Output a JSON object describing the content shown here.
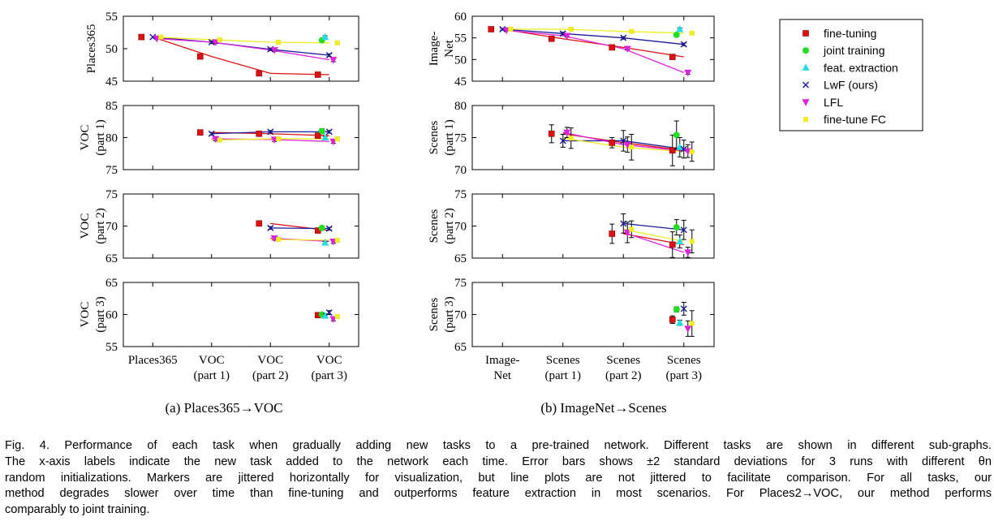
{
  "legend": [
    {
      "key": "ft",
      "label": "fine-tuning",
      "color": "#dd1111",
      "marker": "square"
    },
    {
      "key": "jt",
      "label": "joint training",
      "color": "#22dd22",
      "marker": "circle"
    },
    {
      "key": "fe",
      "label": "feat. extraction",
      "color": "#22dddd",
      "marker": "triangle-up"
    },
    {
      "key": "lwf",
      "label": "LwF (ours)",
      "color": "#1a1a9a",
      "marker": "x"
    },
    {
      "key": "lfl",
      "label": "LFL",
      "color": "#dd22dd",
      "marker": "triangle-down"
    },
    {
      "key": "ftfc",
      "label": "fine-tune FC",
      "color": "#eeee22",
      "marker": "square-small"
    }
  ],
  "subcaptions": [
    "(a) Places365→VOC",
    "(b) ImageNet→Scenes"
  ],
  "caption": [
    "Fig. 4. Performance of each task when gradually adding new tasks to a pre-trained network. Different tasks are shown in different sub-graphs.",
    "The x-axis labels indicate the new task added to the network each time. Error bars shows ±2 standard deviations for 3 runs with different θn",
    "random initializations. Markers are jittered horizontally for visualization, but line plots are not jittered to facilitate comparison. For all tasks, our",
    "method degrades slower over time than fine-tuning and outperforms feature extraction in most scenarios. For Places2→VOC, our method performs",
    "comparably to joint training."
  ],
  "chart_data": [
    {
      "type": "line",
      "panel": "a",
      "ylabel": [
        "Places365"
      ],
      "ylim": [
        45,
        55
      ],
      "yticks": [
        45,
        50,
        55
      ],
      "categories": [
        [
          "Places365"
        ],
        [
          "VOC",
          "(part 1)"
        ],
        [
          "VOC",
          "(part 2)"
        ],
        [
          "VOC",
          "(part 3)"
        ]
      ],
      "show_xticklabels": false,
      "series": [
        {
          "key": "ft",
          "values": [
            51.8,
            48.8,
            46.2,
            46.0
          ],
          "err": [
            0,
            0.3,
            0.3,
            0.3
          ]
        },
        {
          "key": "jt",
          "values": [
            null,
            null,
            null,
            51.3
          ],
          "err": [
            0,
            0,
            0,
            0.2
          ]
        },
        {
          "key": "fe",
          "values": [
            null,
            null,
            null,
            51.8
          ],
          "err": [
            0,
            0,
            0,
            0.2
          ]
        },
        {
          "key": "lwf",
          "values": [
            51.8,
            51.0,
            49.9,
            49.0
          ],
          "err": [
            0,
            0.2,
            0.2,
            0.2
          ]
        },
        {
          "key": "lfl",
          "values": [
            51.6,
            51.0,
            49.8,
            48.3
          ],
          "err": [
            0,
            0.2,
            0.2,
            0.3
          ]
        },
        {
          "key": "ftfc",
          "values": [
            51.8,
            51.4,
            51.0,
            50.9
          ],
          "err": [
            0,
            0.2,
            0.2,
            0.2
          ]
        }
      ]
    },
    {
      "type": "line",
      "panel": "a",
      "ylabel": [
        "VOC",
        "(part 1)"
      ],
      "ylim": [
        75,
        85
      ],
      "yticks": [
        75,
        80,
        85
      ],
      "categories": [
        [
          "Places365"
        ],
        [
          "VOC",
          "(part 1)"
        ],
        [
          "VOC",
          "(part 2)"
        ],
        [
          "VOC",
          "(part 3)"
        ]
      ],
      "show_xticklabels": false,
      "series": [
        {
          "key": "ft",
          "values": [
            null,
            80.8,
            80.6,
            80.3
          ],
          "err": [
            0,
            0.2,
            0.2,
            0.2
          ]
        },
        {
          "key": "jt",
          "values": [
            null,
            null,
            null,
            81.0
          ],
          "err": [
            0,
            0,
            0,
            0.4
          ]
        },
        {
          "key": "fe",
          "values": [
            null,
            null,
            null,
            80.0
          ],
          "err": [
            0,
            0,
            0,
            0.2
          ]
        },
        {
          "key": "lwf",
          "values": [
            null,
            80.6,
            80.9,
            80.9
          ],
          "err": [
            0,
            0.2,
            0.2,
            0.2
          ]
        },
        {
          "key": "lfl",
          "values": [
            null,
            79.8,
            79.7,
            79.4
          ],
          "err": [
            0,
            0.3,
            0.3,
            0.3
          ]
        },
        {
          "key": "ftfc",
          "values": [
            null,
            79.6,
            79.8,
            79.8
          ],
          "err": [
            0,
            0.3,
            0.3,
            0.3
          ]
        }
      ]
    },
    {
      "type": "line",
      "panel": "a",
      "ylabel": [
        "VOC",
        "(part 2)"
      ],
      "ylim": [
        65,
        75
      ],
      "yticks": [
        65,
        70,
        75
      ],
      "categories": [
        [
          "Places365"
        ],
        [
          "VOC",
          "(part 1)"
        ],
        [
          "VOC",
          "(part 2)"
        ],
        [
          "VOC",
          "(part 3)"
        ]
      ],
      "show_xticklabels": false,
      "series": [
        {
          "key": "ft",
          "values": [
            null,
            null,
            70.4,
            69.3
          ],
          "err": [
            0,
            0,
            0.2,
            0.2
          ]
        },
        {
          "key": "jt",
          "values": [
            null,
            null,
            null,
            69.7
          ],
          "err": [
            0,
            0,
            0,
            0.2
          ]
        },
        {
          "key": "fe",
          "values": [
            null,
            null,
            null,
            67.4
          ],
          "err": [
            0,
            0,
            0,
            0.2
          ]
        },
        {
          "key": "lwf",
          "values": [
            null,
            null,
            69.7,
            69.6
          ],
          "err": [
            0,
            0,
            0.2,
            0.2
          ]
        },
        {
          "key": "lfl",
          "values": [
            null,
            null,
            68.1,
            67.6
          ],
          "err": [
            0,
            0,
            0.3,
            0.3
          ]
        },
        {
          "key": "ftfc",
          "values": [
            null,
            null,
            67.9,
            67.8
          ],
          "err": [
            0,
            0,
            0.3,
            0.3
          ]
        }
      ]
    },
    {
      "type": "line",
      "panel": "a",
      "ylabel": [
        "VOC",
        "(part 3)"
      ],
      "ylim": [
        55,
        65
      ],
      "yticks": [
        55,
        60,
        65
      ],
      "categories": [
        [
          "Places365"
        ],
        [
          "VOC",
          "(part 1)"
        ],
        [
          "VOC",
          "(part 2)"
        ],
        [
          "VOC",
          "(part 3)"
        ]
      ],
      "show_xticklabels": true,
      "series": [
        {
          "key": "ft",
          "values": [
            null,
            null,
            null,
            59.9
          ],
          "err": [
            0,
            0,
            0,
            0.3
          ]
        },
        {
          "key": "jt",
          "values": [
            null,
            null,
            null,
            60.0
          ],
          "err": [
            0,
            0,
            0,
            0.3
          ]
        },
        {
          "key": "fe",
          "values": [
            null,
            null,
            null,
            59.8
          ],
          "err": [
            0,
            0,
            0,
            0.3
          ]
        },
        {
          "key": "lwf",
          "values": [
            null,
            null,
            null,
            60.3
          ],
          "err": [
            0,
            0,
            0,
            0.3
          ]
        },
        {
          "key": "lfl",
          "values": [
            null,
            null,
            null,
            59.3
          ],
          "err": [
            0,
            0,
            0,
            0.3
          ]
        },
        {
          "key": "ftfc",
          "values": [
            null,
            null,
            null,
            59.7
          ],
          "err": [
            0,
            0,
            0,
            0.3
          ]
        }
      ]
    },
    {
      "type": "line",
      "panel": "b",
      "ylabel": [
        "Image-",
        "Net"
      ],
      "ylim": [
        45,
        60
      ],
      "yticks": [
        45,
        50,
        55,
        60
      ],
      "categories": [
        [
          "Image-",
          "Net"
        ],
        [
          "Scenes",
          "(part 1)"
        ],
        [
          "Scenes",
          "(part 2)"
        ],
        [
          "Scenes",
          "(part 3)"
        ]
      ],
      "show_xticklabels": false,
      "series": [
        {
          "key": "ft",
          "values": [
            57.0,
            54.8,
            52.8,
            50.6
          ],
          "err": [
            0.2,
            0.3,
            0.3,
            0.3
          ]
        },
        {
          "key": "jt",
          "values": [
            null,
            null,
            null,
            55.7
          ],
          "err": [
            0,
            0,
            0,
            0.3
          ]
        },
        {
          "key": "fe",
          "values": [
            null,
            null,
            null,
            57.0
          ],
          "err": [
            0,
            0,
            0,
            0.3
          ]
        },
        {
          "key": "lwf",
          "values": [
            57.0,
            56.0,
            55.0,
            53.5
          ],
          "err": [
            0.2,
            0.3,
            0.3,
            0.3
          ]
        },
        {
          "key": "lfl",
          "values": [
            56.8,
            55.5,
            52.5,
            47.0
          ],
          "err": [
            0.2,
            0.3,
            0.3,
            0.4
          ]
        },
        {
          "key": "ftfc",
          "values": [
            57.0,
            57.0,
            56.5,
            56.1
          ],
          "err": [
            0.2,
            0.2,
            0.2,
            0.2
          ]
        }
      ]
    },
    {
      "type": "line",
      "panel": "b",
      "ylabel": [
        "Scenes",
        "(part 1)"
      ],
      "ylim": [
        70,
        80
      ],
      "yticks": [
        70,
        75,
        80
      ],
      "categories": [
        [
          "Image-",
          "Net"
        ],
        [
          "Scenes",
          "(part 1)"
        ],
        [
          "Scenes",
          "(part 2)"
        ],
        [
          "Scenes",
          "(part 3)"
        ]
      ],
      "show_xticklabels": false,
      "series": [
        {
          "key": "ft",
          "values": [
            null,
            75.6,
            74.2,
            73.0
          ],
          "err": [
            0,
            1.4,
            0.8,
            2.4
          ]
        },
        {
          "key": "jt",
          "values": [
            null,
            null,
            null,
            75.4
          ],
          "err": [
            0,
            0,
            0,
            2.2
          ]
        },
        {
          "key": "fe",
          "values": [
            null,
            null,
            null,
            73.5
          ],
          "err": [
            0,
            0,
            0,
            1.5
          ]
        },
        {
          "key": "lwf",
          "values": [
            null,
            74.5,
            74.5,
            73.2
          ],
          "err": [
            0,
            1.0,
            1.6,
            1.4
          ]
        },
        {
          "key": "lfl",
          "values": [
            null,
            75.8,
            73.9,
            72.9
          ],
          "err": [
            0,
            0.8,
            1.2,
            1.0
          ]
        },
        {
          "key": "ftfc",
          "values": [
            null,
            74.9,
            73.5,
            72.8
          ],
          "err": [
            0,
            1.6,
            2.0,
            1.5
          ]
        }
      ]
    },
    {
      "type": "line",
      "panel": "b",
      "ylabel": [
        "Scenes",
        "(part 2)"
      ],
      "ylim": [
        65,
        75
      ],
      "yticks": [
        65,
        70,
        75
      ],
      "categories": [
        [
          "Image-",
          "Net"
        ],
        [
          "Scenes",
          "(part 1)"
        ],
        [
          "Scenes",
          "(part 2)"
        ],
        [
          "Scenes",
          "(part 3)"
        ]
      ],
      "show_xticklabels": false,
      "series": [
        {
          "key": "ft",
          "values": [
            null,
            null,
            68.8,
            67.1
          ],
          "err": [
            0,
            0,
            1.5,
            2.0
          ]
        },
        {
          "key": "jt",
          "values": [
            null,
            null,
            null,
            69.8
          ],
          "err": [
            0,
            0,
            0,
            1.2
          ]
        },
        {
          "key": "fe",
          "values": [
            null,
            null,
            null,
            67.6
          ],
          "err": [
            0,
            0,
            0,
            1.0
          ]
        },
        {
          "key": "lwf",
          "values": [
            null,
            null,
            70.4,
            69.4
          ],
          "err": [
            0,
            0,
            1.5,
            1.5
          ]
        },
        {
          "key": "lfl",
          "values": [
            null,
            null,
            69.0,
            65.9
          ],
          "err": [
            0,
            0,
            1.6,
            0.8
          ]
        },
        {
          "key": "ftfc",
          "values": [
            null,
            null,
            69.5,
            67.6
          ],
          "err": [
            0,
            0,
            1.3,
            1.8
          ]
        }
      ]
    },
    {
      "type": "line",
      "panel": "b",
      "ylabel": [
        "Scenes",
        "(part 3)"
      ],
      "ylim": [
        65,
        75
      ],
      "yticks": [
        65,
        70,
        75
      ],
      "categories": [
        [
          "Image-",
          "Net"
        ],
        [
          "Scenes",
          "(part 1)"
        ],
        [
          "Scenes",
          "(part 2)"
        ],
        [
          "Scenes",
          "(part 3)"
        ]
      ],
      "show_xticklabels": true,
      "series": [
        {
          "key": "ft",
          "values": [
            null,
            null,
            null,
            69.2
          ],
          "err": [
            0,
            0,
            0,
            0.6
          ]
        },
        {
          "key": "jt",
          "values": [
            null,
            null,
            null,
            70.8
          ],
          "err": [
            0,
            0,
            0,
            0.4
          ]
        },
        {
          "key": "fe",
          "values": [
            null,
            null,
            null,
            68.7
          ],
          "err": [
            0,
            0,
            0,
            0.4
          ]
        },
        {
          "key": "lwf",
          "values": [
            null,
            null,
            null,
            70.9
          ],
          "err": [
            0,
            0,
            0,
            1.0
          ]
        },
        {
          "key": "lfl",
          "values": [
            null,
            null,
            null,
            67.8
          ],
          "err": [
            0,
            0,
            0,
            1.2
          ]
        },
        {
          "key": "ftfc",
          "values": [
            null,
            null,
            null,
            68.6
          ],
          "err": [
            0,
            0,
            0,
            2.0
          ]
        }
      ]
    }
  ]
}
